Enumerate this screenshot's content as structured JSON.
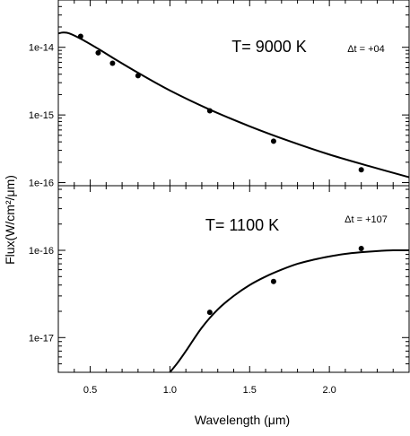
{
  "chart_data": {
    "type": "scatter",
    "xlabel": "Wavelength (μm)",
    "ylabel": "Flux(W/cm²/μm)",
    "x_ticks": [
      "0.5",
      "1.0",
      "1.5",
      "2.0"
    ],
    "xlim": [
      0.3,
      2.5
    ],
    "panels": [
      {
        "title": "T= 9000 K",
        "delta_t": "Δt = +04",
        "y_scale": "log",
        "ylim": [
          9e-17,
          5e-14
        ],
        "y_ticks": [
          {
            "value": 1e-14,
            "label": "1e-14"
          },
          {
            "value": 1e-15,
            "label": "1e-15"
          },
          {
            "value": 1e-16,
            "label": "1e-16"
          }
        ],
        "points": [
          {
            "x": 0.44,
            "y": 1.45e-14
          },
          {
            "x": 0.55,
            "y": 8.3e-15
          },
          {
            "x": 0.64,
            "y": 5.8e-15
          },
          {
            "x": 0.8,
            "y": 3.8e-15
          },
          {
            "x": 1.25,
            "y": 1.15e-15
          },
          {
            "x": 1.65,
            "y": 4.1e-16
          },
          {
            "x": 2.2,
            "y": 1.55e-16
          }
        ],
        "curve": [
          {
            "x": 0.3,
            "y": 1.6e-14
          },
          {
            "x": 0.33,
            "y": 1.65e-14
          },
          {
            "x": 0.37,
            "y": 1.6e-14
          },
          {
            "x": 0.45,
            "y": 1.3e-14
          },
          {
            "x": 0.55,
            "y": 9.5e-15
          },
          {
            "x": 0.65,
            "y": 6.8e-15
          },
          {
            "x": 0.8,
            "y": 4.2e-15
          },
          {
            "x": 1.0,
            "y": 2.3e-15
          },
          {
            "x": 1.25,
            "y": 1.2e-15
          },
          {
            "x": 1.5,
            "y": 6.8e-16
          },
          {
            "x": 1.75,
            "y": 4.1e-16
          },
          {
            "x": 2.0,
            "y": 2.6e-16
          },
          {
            "x": 2.25,
            "y": 1.75e-16
          },
          {
            "x": 2.5,
            "y": 1.2e-16
          }
        ]
      },
      {
        "title": "T= 1100 K",
        "delta_t": "Δt = +107",
        "y_scale": "log",
        "ylim": [
          4e-18,
          5.5e-16
        ],
        "y_ticks": [
          {
            "value": 1e-16,
            "label": "1e-16"
          },
          {
            "value": 1e-17,
            "label": "1e-17"
          }
        ],
        "points": [
          {
            "x": 1.25,
            "y": 1.95e-17
          },
          {
            "x": 1.65,
            "y": 4.4e-17
          },
          {
            "x": 2.2,
            "y": 1.05e-16
          }
        ],
        "curve": [
          {
            "x": 1.0,
            "y": 4e-18
          },
          {
            "x": 1.05,
            "y": 5.2e-18
          },
          {
            "x": 1.1,
            "y": 7e-18
          },
          {
            "x": 1.2,
            "y": 1.3e-17
          },
          {
            "x": 1.3,
            "y": 2.1e-17
          },
          {
            "x": 1.4,
            "y": 3e-17
          },
          {
            "x": 1.5,
            "y": 4e-17
          },
          {
            "x": 1.6,
            "y": 5e-17
          },
          {
            "x": 1.7,
            "y": 6e-17
          },
          {
            "x": 1.8,
            "y": 7e-17
          },
          {
            "x": 1.9,
            "y": 7.8e-17
          },
          {
            "x": 2.0,
            "y": 8.5e-17
          },
          {
            "x": 2.1,
            "y": 9.1e-17
          },
          {
            "x": 2.2,
            "y": 9.5e-17
          },
          {
            "x": 2.3,
            "y": 9.8e-17
          },
          {
            "x": 2.4,
            "y": 1e-16
          },
          {
            "x": 2.5,
            "y": 1e-16
          }
        ]
      }
    ]
  }
}
